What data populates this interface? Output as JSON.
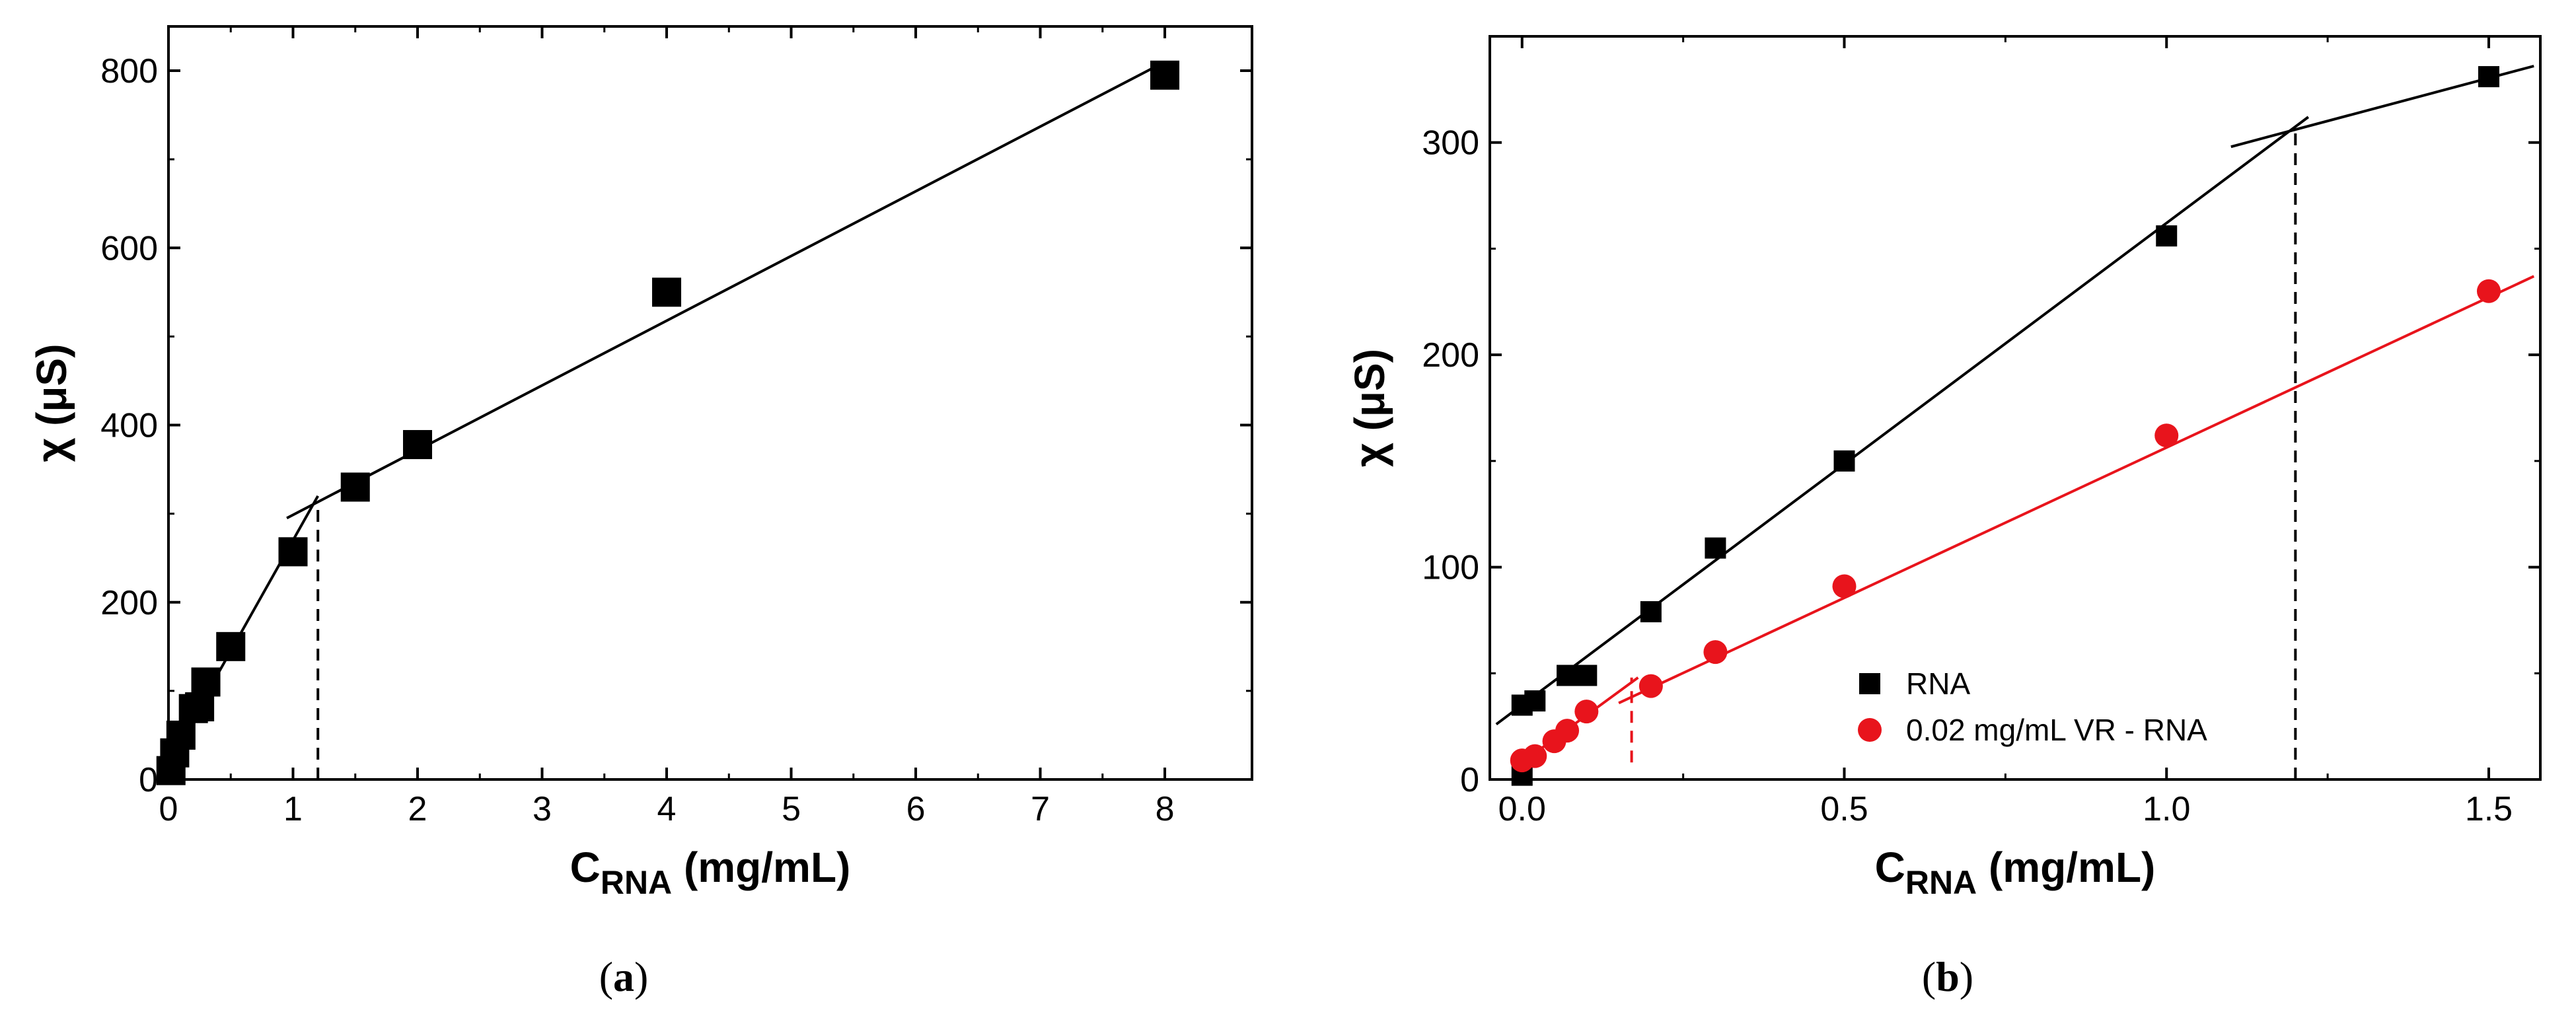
{
  "chart_data": [
    {
      "panel": "(a)",
      "type": "scatter",
      "xlabel_main": "C",
      "xlabel_sub": "RNA",
      "xlabel_unit": "(mg/mL)",
      "ylabel": "χ (μS)",
      "xlim": [
        0,
        8.7
      ],
      "ylim": [
        0,
        850
      ],
      "xticks": [
        0,
        1,
        2,
        3,
        4,
        5,
        6,
        7,
        8
      ],
      "yticks": [
        0,
        200,
        400,
        600,
        800
      ],
      "series": [
        {
          "color": "#000000",
          "marker": "square",
          "points": [
            [
              0.02,
              10
            ],
            [
              0.05,
              30
            ],
            [
              0.1,
              50
            ],
            [
              0.2,
              80
            ],
            [
              0.25,
              82
            ],
            [
              0.3,
              110
            ],
            [
              0.5,
              150
            ],
            [
              1.0,
              257
            ],
            [
              1.5,
              330
            ],
            [
              2.0,
              378
            ],
            [
              4.0,
              550
            ],
            [
              8.0,
              795
            ]
          ]
        }
      ],
      "fit_lines": [
        {
          "color": "#000000",
          "from": [
            0,
            20
          ],
          "to": [
            1.2,
            320
          ]
        },
        {
          "color": "#000000",
          "from": [
            0.95,
            295
          ],
          "to": [
            8.0,
            810
          ]
        }
      ],
      "marker_lines": [
        {
          "color": "#000000",
          "x": 1.2,
          "y_from": 0,
          "y_to": 312
        }
      ]
    },
    {
      "panel": "(b)",
      "type": "scatter",
      "xlabel_main": "C",
      "xlabel_sub": "RNA",
      "xlabel_unit": "(mg/mL)",
      "ylabel": "χ (μS)",
      "xlim": [
        -0.05,
        1.58
      ],
      "ylim": [
        0,
        350
      ],
      "xticks": [
        0.0,
        0.5,
        1.0,
        1.5
      ],
      "xtick_labels": [
        "0.0",
        "0.5",
        "1.0",
        "1.5"
      ],
      "yticks": [
        0,
        100,
        200,
        300
      ],
      "series": [
        {
          "name": "RNA",
          "color": "#000000",
          "marker": "square",
          "points": [
            [
              0.0,
              2
            ],
            [
              0.0,
              35
            ],
            [
              0.02,
              37
            ],
            [
              0.07,
              49
            ],
            [
              0.1,
              49
            ],
            [
              0.2,
              79
            ],
            [
              0.3,
              109
            ],
            [
              0.5,
              150
            ],
            [
              1.0,
              256
            ],
            [
              1.5,
              331
            ]
          ]
        },
        {
          "name": "0.02 mg/mL VR - RNA",
          "color": "#e8141c",
          "marker": "circle",
          "points": [
            [
              0.0,
              9
            ],
            [
              0.02,
              11
            ],
            [
              0.05,
              18
            ],
            [
              0.07,
              23
            ],
            [
              0.1,
              32
            ],
            [
              0.2,
              44
            ],
            [
              0.3,
              60
            ],
            [
              0.5,
              91
            ],
            [
              1.0,
              162
            ],
            [
              1.5,
              230
            ]
          ]
        }
      ],
      "fit_lines": [
        {
          "color": "#000000",
          "from": [
            -0.04,
            26
          ],
          "to": [
            1.22,
            312
          ]
        },
        {
          "color": "#000000",
          "from": [
            1.1,
            298
          ],
          "to": [
            1.57,
            336
          ]
        },
        {
          "color": "#e8141c",
          "from": [
            0.0,
            8
          ],
          "to": [
            0.18,
            48
          ]
        },
        {
          "color": "#e8141c",
          "from": [
            0.15,
            36
          ],
          "to": [
            1.57,
            237
          ]
        }
      ],
      "marker_lines": [
        {
          "color": "#000000",
          "x": 1.2,
          "y_from": 0,
          "y_to": 305
        },
        {
          "color": "#e8141c",
          "x": 0.17,
          "y_from": 8,
          "y_to": 48
        }
      ],
      "legend_position": "bottom-center"
    }
  ]
}
